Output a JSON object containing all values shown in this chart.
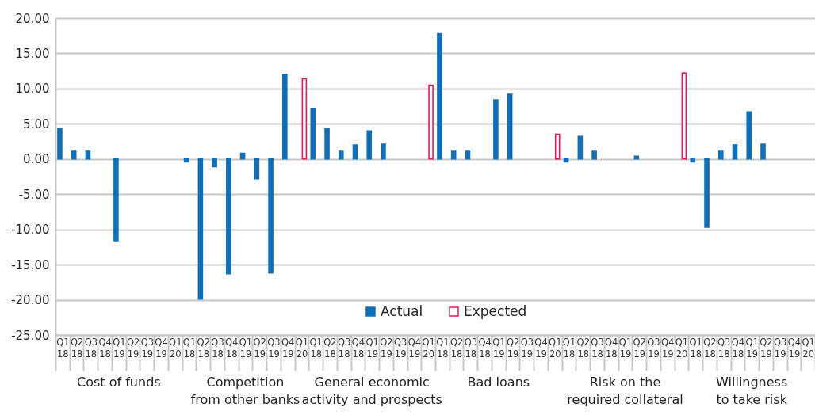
{
  "chart_data": {
    "type": "bar",
    "categories": [
      "Q1 18",
      "Q2 18",
      "Q3 18",
      "Q4 18",
      "Q1 19",
      "Q2 19",
      "Q3 19",
      "Q4 19",
      "Q1 20",
      "Q1 18",
      "Q2 18",
      "Q3 18",
      "Q4 18",
      "Q1 19",
      "Q2 19",
      "Q3 19",
      "Q4 19",
      "Q1 20",
      "Q1 18",
      "Q2 18",
      "Q3 18",
      "Q4 18",
      "Q1 19",
      "Q2 19",
      "Q3 19",
      "Q4 19",
      "Q1 20",
      "Q1 18",
      "Q2 18",
      "Q3 18",
      "Q4 18",
      "Q1 19",
      "Q2 19",
      "Q3 19",
      "Q4 19",
      "Q1 20",
      "Q1 18",
      "Q2 18",
      "Q3 18",
      "Q4 18",
      "Q1 19",
      "Q2 19",
      "Q3 19",
      "Q4 19",
      "Q1 20",
      "Q1 18",
      "Q2 18",
      "Q3 18",
      "Q4 18",
      "Q1 19",
      "Q2 19",
      "Q3 19",
      "Q4 19",
      "Q1 20"
    ],
    "series": [
      {
        "name": "Actual",
        "color": "#0f6fb8",
        "values": [
          4.3,
          1.1,
          1.1,
          null,
          -11.6,
          null,
          null,
          null,
          null,
          -0.4,
          -19.9,
          -1.1,
          -16.3,
          0.8,
          -2.8,
          -16.2,
          12.0,
          null,
          7.2,
          4.3,
          1.1,
          2.0,
          4.0,
          2.1,
          null,
          null,
          null,
          17.8,
          1.1,
          1.1,
          null,
          8.4,
          9.2,
          null,
          null,
          null,
          -0.4,
          3.2,
          1.1,
          null,
          null,
          0.4,
          null,
          null,
          null,
          -0.4,
          -9.7,
          1.1,
          2.0,
          6.7,
          2.1,
          null,
          null,
          null
        ]
      },
      {
        "name": "Expected",
        "color": "#e8175d",
        "values": [
          null,
          null,
          null,
          null,
          null,
          null,
          null,
          null,
          null,
          null,
          null,
          null,
          null,
          null,
          null,
          null,
          null,
          11.4,
          null,
          null,
          null,
          null,
          null,
          null,
          null,
          null,
          10.5,
          null,
          null,
          null,
          null,
          null,
          null,
          null,
          null,
          3.5,
          null,
          null,
          null,
          null,
          null,
          null,
          null,
          null,
          12.2,
          null,
          null,
          null,
          null,
          null,
          null,
          null,
          null,
          null
        ]
      }
    ],
    "annotations": [
      "Cost of funds",
      "Competition from other banks",
      "General economic activity and prospects",
      "Bad loans",
      "Risk on the required collateral",
      "Willingness to take risk"
    ],
    "ylim": [
      -25,
      20
    ],
    "yticks": [
      {
        "value": -25,
        "label": "-25.00"
      },
      {
        "value": -20,
        "label": "-20.00"
      },
      {
        "value": -15,
        "label": "-15.00"
      },
      {
        "value": -10,
        "label": "-10.00"
      },
      {
        "value": -5,
        "label": "-5.00"
      },
      {
        "value": 0,
        "label": "0.00"
      },
      {
        "value": 5,
        "label": "5.00"
      },
      {
        "value": 10,
        "label": "10.00"
      },
      {
        "value": 15,
        "label": "15.00"
      },
      {
        "value": 20,
        "label": "20.00"
      }
    ],
    "grid": "y",
    "legend": "bottom"
  }
}
